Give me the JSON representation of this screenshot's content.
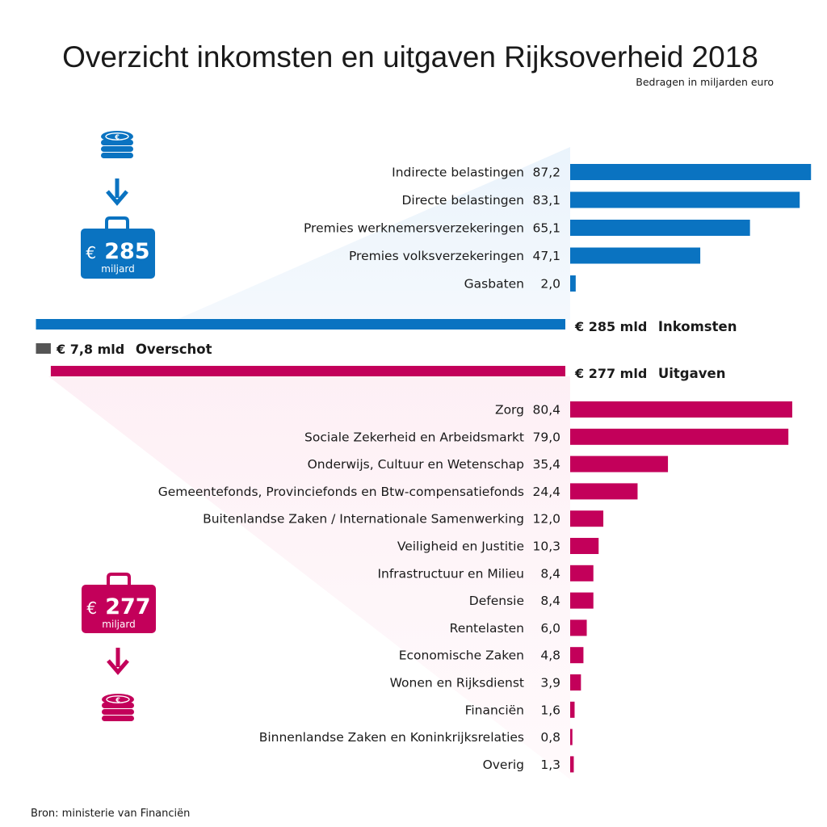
{
  "chart_data": {
    "type": "bar",
    "title": "Overzicht inkomsten en uitgaven Rijksoverheid 2018",
    "subtitle": "Bedragen in miljarden euro",
    "source": "Bron: ministerie van Financiën",
    "colors": {
      "income": "#0a73c1",
      "expense": "#c3005a",
      "surplus": "#555555"
    },
    "income": {
      "categories": [
        "Indirecte belastingen",
        "Directe belastingen",
        "Premies werknemersverzekeringen",
        "Premies volksverzekeringen",
        "Gasbaten"
      ],
      "values": [
        87.2,
        83.1,
        65.1,
        47.1,
        2.0
      ],
      "labels": [
        "87,2",
        "83,1",
        "65,1",
        "47,1",
        "2,0"
      ]
    },
    "expenses": {
      "categories": [
        "Zorg",
        "Sociale Zekerheid en Arbeidsmarkt",
        "Onderwijs, Cultuur en Wetenschap",
        "Gemeentefonds, Provinciefonds en Btw-compensatiefonds",
        "Buitenlandse Zaken / Internationale Samenwerking",
        "Veiligheid en Justitie",
        "Infrastructuur en Milieu",
        "Defensie",
        "Rentelasten",
        "Economische Zaken",
        "Wonen en Rijksdienst",
        "Financiën",
        "Binnenlandse Zaken en Koninkrijksrelaties",
        "Overig"
      ],
      "values": [
        80.4,
        79.0,
        35.4,
        24.4,
        12.0,
        10.3,
        8.4,
        8.4,
        6.0,
        4.8,
        3.9,
        1.6,
        0.8,
        1.3
      ],
      "labels": [
        "80,4",
        "79,0",
        "35,4",
        "24,4",
        "12,0",
        "10,3",
        "8,4",
        "8,4",
        "6,0",
        "4,8",
        "3,9",
        "1,6",
        "0,8",
        "1,3"
      ]
    },
    "totals": {
      "income": {
        "value": 285,
        "amount": "€ 285 mld",
        "label": "Inkomsten"
      },
      "expenses": {
        "value": 277,
        "amount": "€ 277 mld",
        "label": "Uitgaven"
      },
      "surplus": {
        "value": 7.8,
        "amount": "€ 7,8 mld",
        "label": "Overschot"
      }
    },
    "badges": {
      "income": {
        "currency": "€",
        "amount": "285",
        "unit": "miljard"
      },
      "expenses": {
        "currency": "€",
        "amount": "277",
        "unit": "miljard"
      }
    },
    "icons": [
      "coins-icon",
      "arrow-down-icon",
      "briefcase-icon"
    ]
  }
}
